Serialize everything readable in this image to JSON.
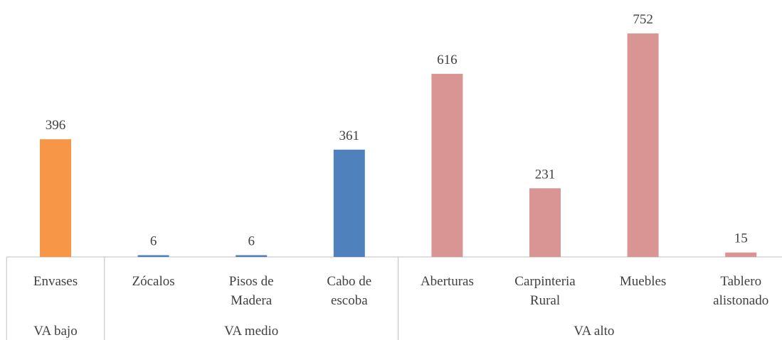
{
  "chart_data": {
    "type": "bar",
    "categories": [
      "Envases",
      "Zócalos",
      "Pisos de Madera",
      "Cabo de escoba",
      "Aberturas",
      "Carpinteria Rural",
      "Muebles",
      "Tablero alistonado"
    ],
    "values": [
      396,
      6,
      6,
      361,
      616,
      231,
      752,
      15
    ],
    "groups": [
      {
        "name": "VA bajo",
        "span": 1,
        "color": "#f79646"
      },
      {
        "name": "VA medio",
        "span": 3,
        "color": "#4f81bd"
      },
      {
        "name": "VA alto",
        "span": 4,
        "color": "#d99594"
      }
    ],
    "ylim": [
      0,
      800
    ]
  }
}
